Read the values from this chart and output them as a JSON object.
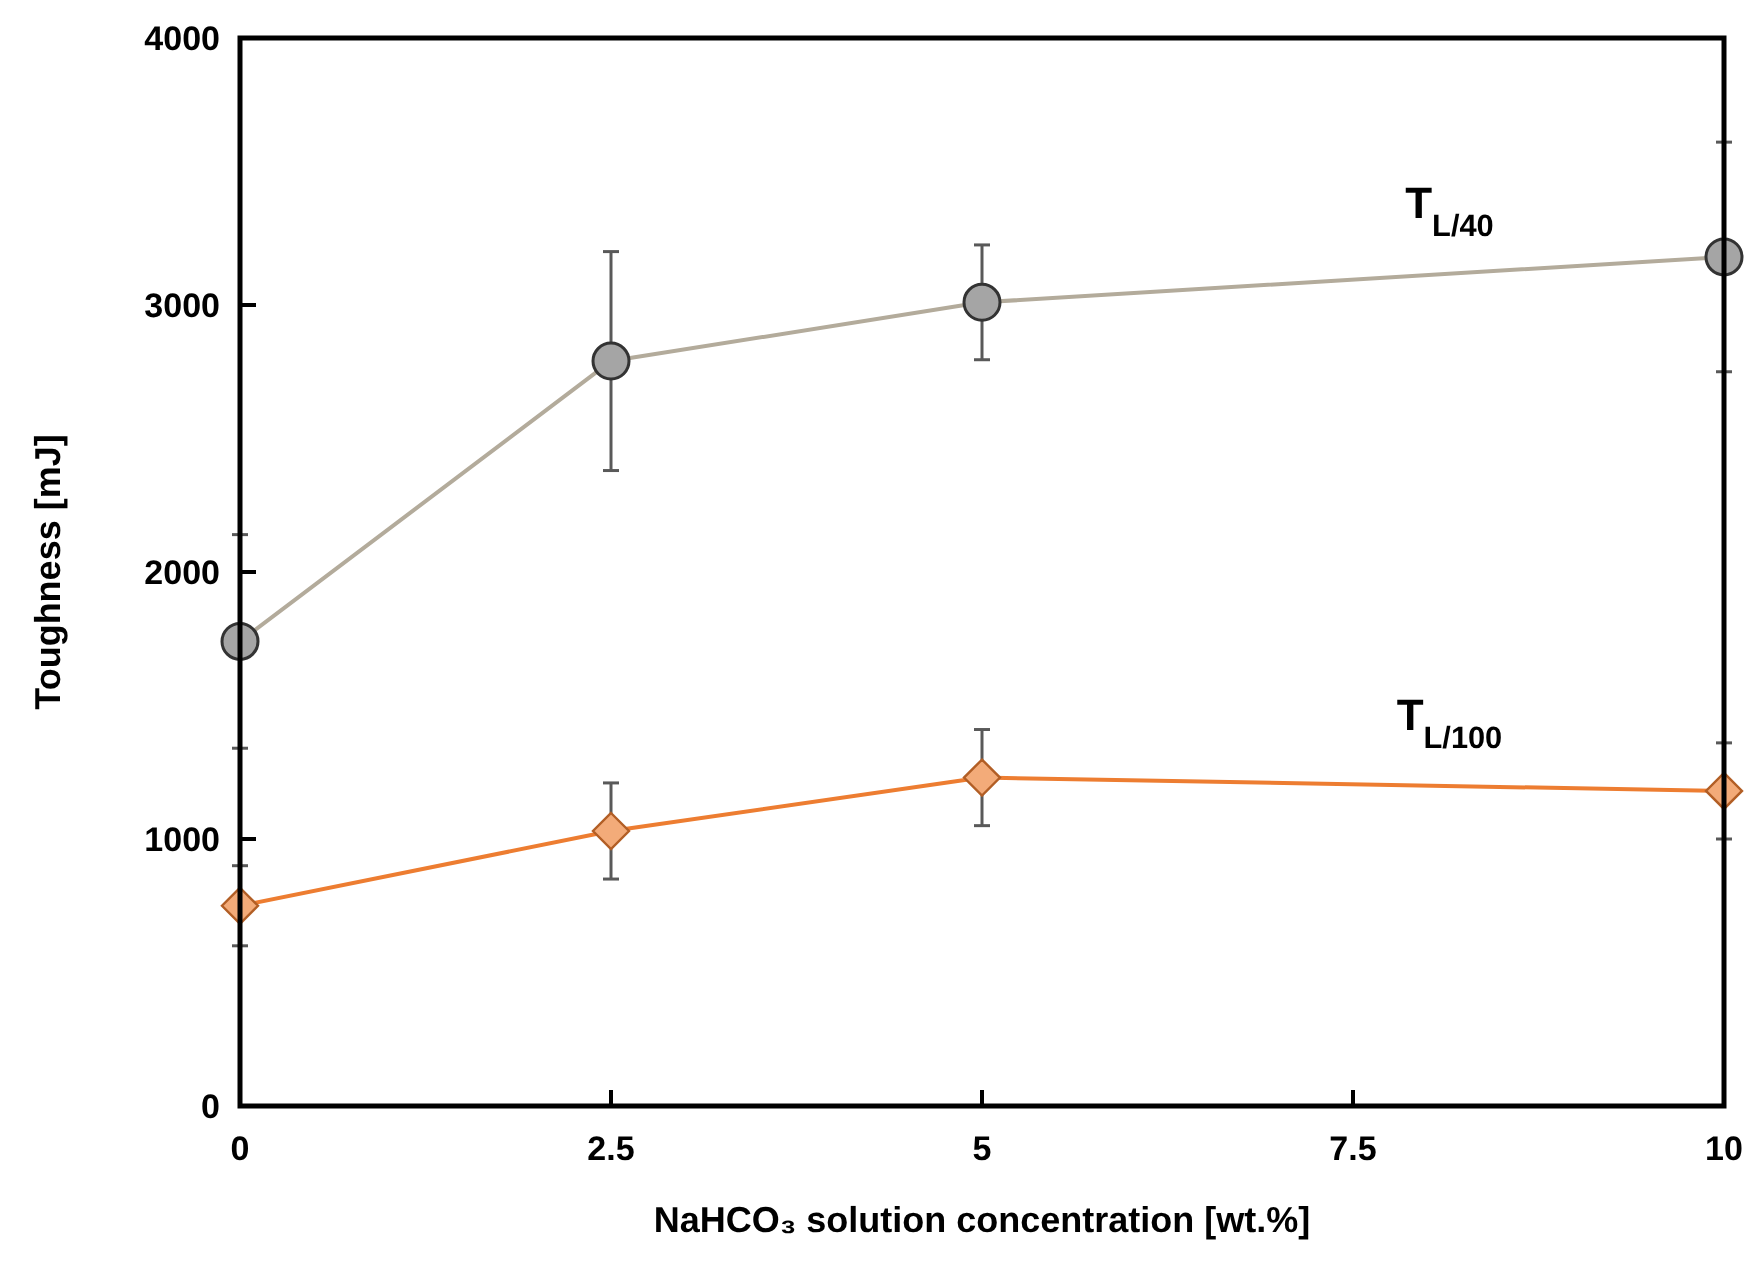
{
  "chart_data": {
    "type": "line",
    "xlabel": "NaHCO₃ solution concentration [wt.%]",
    "ylabel": "Toughness [mJ]",
    "x": [
      0,
      2.5,
      5,
      10
    ],
    "xlim": [
      0,
      10
    ],
    "xticks": [
      0,
      2.5,
      5,
      7.5,
      10
    ],
    "ylim": [
      0,
      4000
    ],
    "yticks": [
      0,
      1000,
      2000,
      3000,
      4000
    ],
    "grid": false,
    "series": [
      {
        "name": "T$_{L/40}$",
        "color": "#a5a5a5",
        "marker": "circle",
        "values": [
          1740,
          2790,
          3010,
          3180
        ],
        "errors": [
          400,
          410,
          215,
          430
        ]
      },
      {
        "name": "T$_{L/100}$",
        "color": "#ed7d31",
        "marker": "diamond",
        "values": [
          750,
          1030,
          1230,
          1180
        ],
        "errors": [
          150,
          180,
          180,
          180
        ]
      }
    ]
  }
}
